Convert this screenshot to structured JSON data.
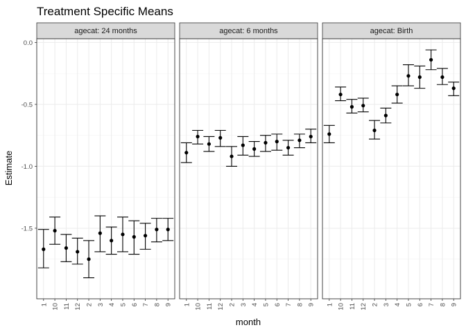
{
  "chart_data": {
    "type": "scatter",
    "title": "Treatment Specific Means",
    "xlabel": "month",
    "ylabel": "Estimate",
    "ylim": [
      -2.07,
      0.03
    ],
    "yticks": [
      0.0,
      -0.5,
      -1.0,
      -1.5
    ],
    "ytick_labels": [
      "0.0",
      "-0.5",
      "-1.0",
      "-1.5"
    ],
    "categories": [
      "1",
      "10",
      "11",
      "12",
      "2",
      "3",
      "4",
      "5",
      "6",
      "7",
      "8",
      "9"
    ],
    "grid": true,
    "error_bars": true,
    "panels": [
      {
        "strip": "agecat: 24 months",
        "estimate": [
          -1.67,
          -1.52,
          -1.66,
          -1.69,
          -1.75,
          -1.54,
          -1.6,
          -1.55,
          -1.57,
          -1.56,
          -1.51,
          -1.51
        ],
        "lower": [
          -1.82,
          -1.63,
          -1.77,
          -1.79,
          -1.9,
          -1.69,
          -1.71,
          -1.69,
          -1.71,
          -1.67,
          -1.61,
          -1.6
        ],
        "upper": [
          -1.51,
          -1.41,
          -1.55,
          -1.58,
          -1.6,
          -1.4,
          -1.49,
          -1.41,
          -1.44,
          -1.46,
          -1.42,
          -1.42
        ]
      },
      {
        "strip": "agecat: 6 months",
        "estimate": [
          -0.89,
          -0.76,
          -0.82,
          -0.77,
          -0.92,
          -0.83,
          -0.86,
          -0.81,
          -0.8,
          -0.85,
          -0.79,
          -0.76
        ],
        "lower": [
          -0.97,
          -0.82,
          -0.88,
          -0.84,
          -1.0,
          -0.91,
          -0.92,
          -0.88,
          -0.87,
          -0.91,
          -0.85,
          -0.81
        ],
        "upper": [
          -0.81,
          -0.71,
          -0.76,
          -0.71,
          -0.84,
          -0.76,
          -0.8,
          -0.75,
          -0.74,
          -0.79,
          -0.74,
          -0.7
        ]
      },
      {
        "strip": "agecat: Birth",
        "estimate": [
          -0.74,
          -0.42,
          -0.52,
          -0.51,
          -0.71,
          -0.59,
          -0.42,
          -0.27,
          -0.28,
          -0.14,
          -0.28,
          -0.37
        ],
        "lower": [
          -0.81,
          -0.47,
          -0.57,
          -0.56,
          -0.78,
          -0.65,
          -0.49,
          -0.35,
          -0.37,
          -0.22,
          -0.34,
          -0.43
        ],
        "upper": [
          -0.67,
          -0.36,
          -0.46,
          -0.45,
          -0.63,
          -0.53,
          -0.35,
          -0.18,
          -0.19,
          -0.06,
          -0.21,
          -0.32
        ]
      }
    ]
  }
}
